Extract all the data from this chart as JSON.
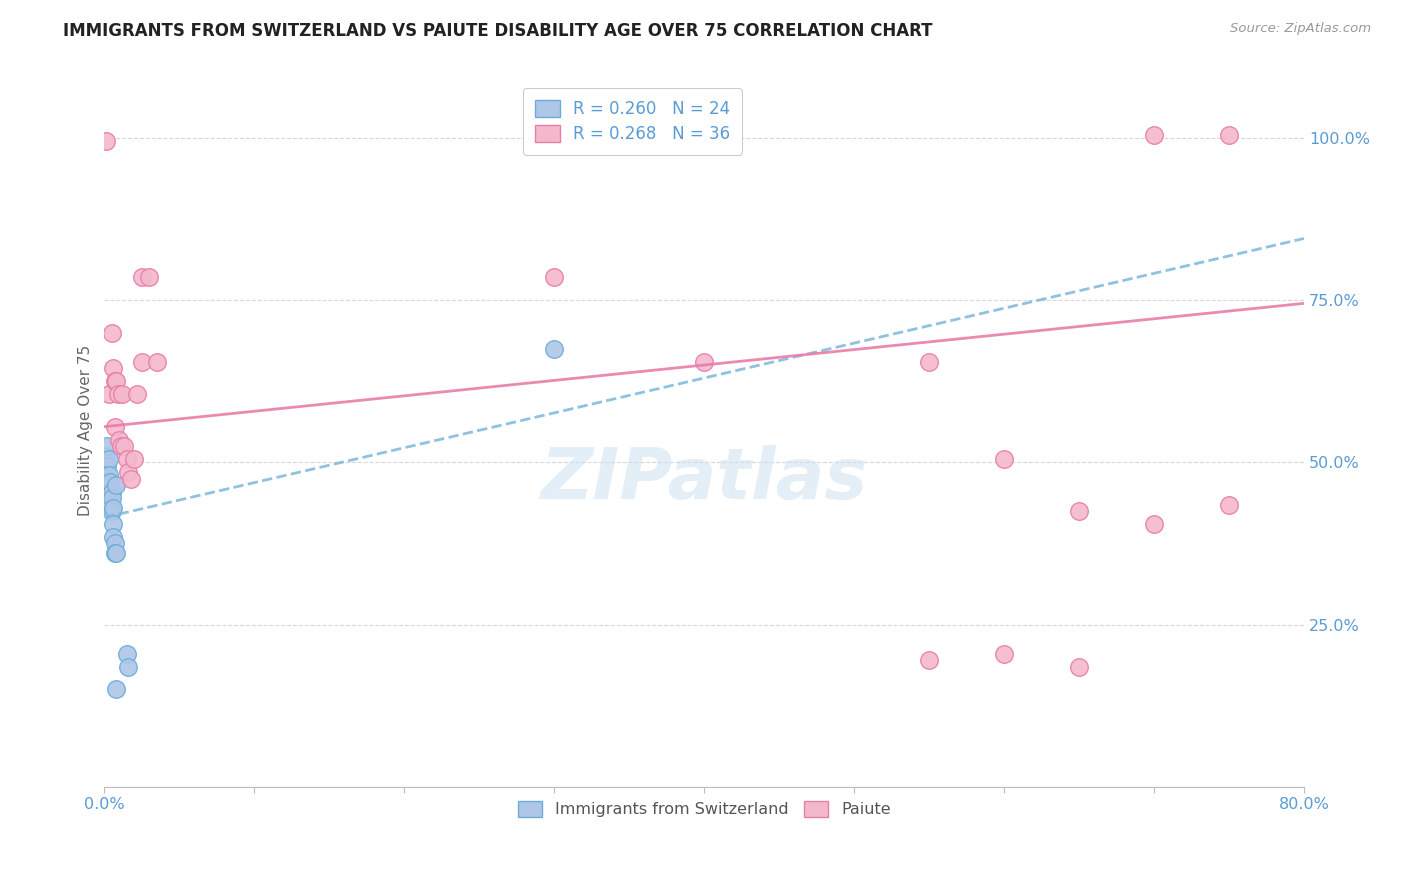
{
  "title": "IMMIGRANTS FROM SWITZERLAND VS PAIUTE DISABILITY AGE OVER 75 CORRELATION CHART",
  "source": "Source: ZipAtlas.com",
  "ylabel": "Disability Age Over 75",
  "xmin": 0.0,
  "xmax": 0.8,
  "ymin": 0.0,
  "ymax": 1.1,
  "color_swiss": "#aec6e8",
  "color_swiss_edge": "#6aaed6",
  "color_paiute": "#f4b8cc",
  "color_paiute_edge": "#e87da8",
  "color_swiss_line": "#7ab8d9",
  "color_paiute_line": "#e87da8",
  "color_axis_labels": "#5b9bd5",
  "color_grid": "#d8d8d8",
  "background_color": "#ffffff",
  "watermark": "ZIPatlas",
  "legend_label1": "Immigrants from Switzerland",
  "legend_label2": "Paiute",
  "swiss_x": [
    0.001,
    0.001,
    0.002,
    0.002,
    0.003,
    0.003,
    0.003,
    0.003,
    0.004,
    0.004,
    0.005,
    0.005,
    0.005,
    0.006,
    0.006,
    0.006,
    0.007,
    0.007,
    0.008,
    0.008,
    0.015,
    0.016,
    0.3,
    0.008
  ],
  "swiss_y": [
    0.51,
    0.47,
    0.525,
    0.495,
    0.505,
    0.48,
    0.465,
    0.455,
    0.47,
    0.435,
    0.455,
    0.445,
    0.425,
    0.43,
    0.405,
    0.385,
    0.375,
    0.36,
    0.36,
    0.15,
    0.205,
    0.185,
    0.675,
    0.465
  ],
  "paiute_x": [
    0.001,
    0.003,
    0.005,
    0.006,
    0.007,
    0.007,
    0.008,
    0.009,
    0.01,
    0.011,
    0.012,
    0.013,
    0.015,
    0.016,
    0.018,
    0.02,
    0.022,
    0.025,
    0.025,
    0.03,
    0.035,
    0.3,
    0.4,
    0.55,
    0.6,
    0.65,
    0.7,
    0.75,
    0.7,
    0.75,
    0.6,
    0.65,
    0.55
  ],
  "paiute_y": [
    0.995,
    0.605,
    0.7,
    0.645,
    0.625,
    0.555,
    0.625,
    0.605,
    0.535,
    0.525,
    0.605,
    0.525,
    0.505,
    0.485,
    0.475,
    0.505,
    0.605,
    0.655,
    0.785,
    0.785,
    0.655,
    0.785,
    0.655,
    0.655,
    0.505,
    0.425,
    0.405,
    1.005,
    1.005,
    0.435,
    0.205,
    0.185,
    0.195
  ],
  "swiss_trendline_x": [
    0.0,
    0.8
  ],
  "swiss_trendline_y": [
    0.415,
    0.845
  ],
  "paiute_trendline_x": [
    0.0,
    0.8
  ],
  "paiute_trendline_y": [
    0.555,
    0.745
  ]
}
